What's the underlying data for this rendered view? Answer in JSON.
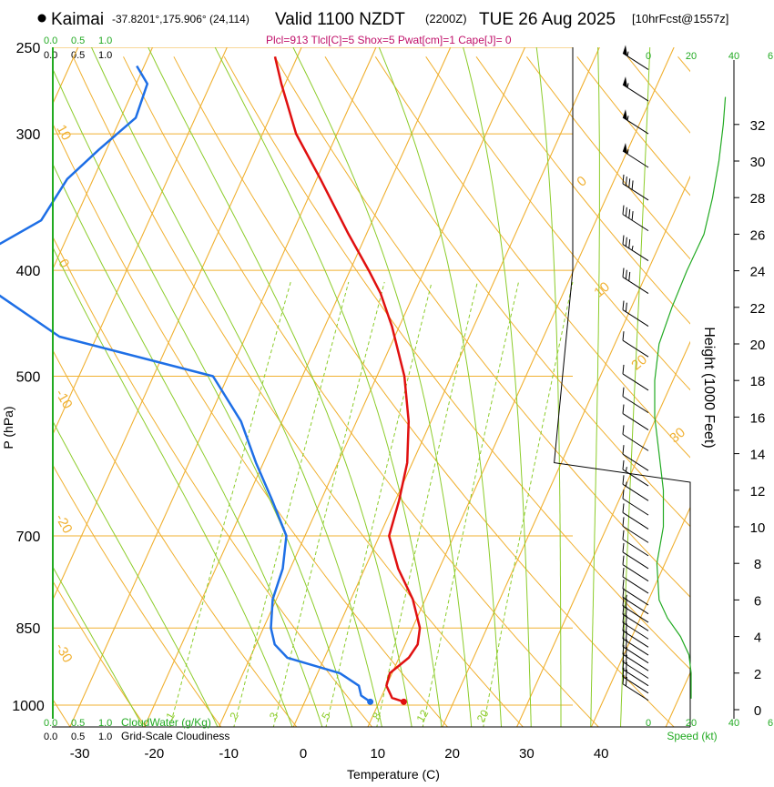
{
  "header": {
    "station": "Kaimai",
    "coords": "-37.8201°,175.906° (24,114)",
    "valid": "Valid 1100 NZDT",
    "zulu": "(2200Z)",
    "date": "TUE 26 Aug 2025",
    "run": "[10hrFcst@1557z]",
    "indices": "Plcl=913 Tlcl[C]=5 Shox=5 Pwat[cm]=1 Cape[J]= 0"
  },
  "scales": {
    "cloud_top": [
      "0.0",
      "0.5",
      "1.0"
    ],
    "cloud_top_black": [
      "0.0",
      "0.5",
      "1.0"
    ],
    "cloud_bottom_green": [
      "0.0",
      "0.5",
      "1.0"
    ],
    "cloud_bottom_black": [
      "0.0",
      "0.5",
      "1.0"
    ],
    "cloudwater_label": "CloudWater (g/Kg)",
    "cloudiness_label": "Grid-Scale Cloudiness",
    "speed_ticks": [
      "0",
      "20",
      "40",
      "6"
    ],
    "speed_label": "Speed (kt)"
  },
  "colors": {
    "temperature": "#e01010",
    "dewpoint": "#1e6fe6",
    "isotherm": "#f0b030",
    "dry_adiabat": "#f0b030",
    "moist_adiabat": "#8ccc2a",
    "mixing_ratio": "#8ccc2a",
    "wind_speed": "#22aa22"
  },
  "chart_data": {
    "type": "skew-t",
    "title": "Kaimai Valid 1100 NZDT TUE 26 Aug 2025",
    "xlabel": "Temperature (C)",
    "ylabel": "P (hPa)",
    "y2label": "Height (1000 Feet)",
    "x_ticks": [
      -30,
      -20,
      -10,
      0,
      10,
      20,
      30,
      40
    ],
    "p_ticks": [
      250,
      300,
      400,
      500,
      700,
      850,
      1000
    ],
    "height_ticks": [
      0,
      2,
      4,
      6,
      8,
      10,
      12,
      14,
      16,
      18,
      20,
      22,
      24,
      26,
      28,
      30,
      32
    ],
    "isotherm_labels": [
      "10",
      "0",
      "-10",
      "-20",
      "-30",
      "0",
      "10",
      "20",
      "30"
    ],
    "mixing_ratio_labels": [
      "1",
      "2",
      "3",
      "5",
      "8",
      "12",
      "20"
    ],
    "series": [
      {
        "name": "Temperature",
        "points": [
          {
            "p": 993,
            "t": 13.3
          },
          {
            "p": 985,
            "t": 11.5
          },
          {
            "p": 960,
            "t": 10.0
          },
          {
            "p": 935,
            "t": 9.7
          },
          {
            "p": 905,
            "t": 11.3
          },
          {
            "p": 880,
            "t": 11.7
          },
          {
            "p": 850,
            "t": 11.0
          },
          {
            "p": 800,
            "t": 8.3
          },
          {
            "p": 750,
            "t": 4.5
          },
          {
            "p": 700,
            "t": 1.3
          },
          {
            "p": 650,
            "t": 0.5
          },
          {
            "p": 600,
            "t": -0.7
          },
          {
            "p": 550,
            "t": -3.0
          },
          {
            "p": 500,
            "t": -6.3
          },
          {
            "p": 450,
            "t": -11.0
          },
          {
            "p": 420,
            "t": -14.5
          },
          {
            "p": 400,
            "t": -17.5
          },
          {
            "p": 370,
            "t": -22.5
          },
          {
            "p": 330,
            "t": -29.5
          },
          {
            "p": 300,
            "t": -35.5
          },
          {
            "p": 270,
            "t": -40.5
          },
          {
            "p": 255,
            "t": -43.0
          }
        ]
      },
      {
        "name": "Dewpoint",
        "points": [
          {
            "p": 993,
            "t": 8.8
          },
          {
            "p": 980,
            "t": 7.2
          },
          {
            "p": 960,
            "t": 6.3
          },
          {
            "p": 935,
            "t": 3.0
          },
          {
            "p": 905,
            "t": -5.0
          },
          {
            "p": 880,
            "t": -7.5
          },
          {
            "p": 850,
            "t": -9.0
          },
          {
            "p": 800,
            "t": -10.5
          },
          {
            "p": 750,
            "t": -11.0
          },
          {
            "p": 700,
            "t": -12.5
          },
          {
            "p": 650,
            "t": -16.5
          },
          {
            "p": 600,
            "t": -21.0
          },
          {
            "p": 550,
            "t": -25.5
          },
          {
            "p": 500,
            "t": -32.0
          },
          {
            "p": 460,
            "t": -55.0
          },
          {
            "p": 400,
            "t": -72.0
          },
          {
            "p": 380,
            "t": -69.0
          },
          {
            "p": 360,
            "t": -64.5
          },
          {
            "p": 330,
            "t": -63.5
          },
          {
            "p": 310,
            "t": -61.0
          },
          {
            "p": 290,
            "t": -58.0
          },
          {
            "p": 270,
            "t": -58.5
          },
          {
            "p": 260,
            "t": -61.0
          }
        ]
      },
      {
        "name": "Wind Speed",
        "points": [
          {
            "h": 0.6,
            "kt": 20
          },
          {
            "h": 1.0,
            "kt": 20
          },
          {
            "h": 2.0,
            "kt": 20
          },
          {
            "h": 3.0,
            "kt": 19
          },
          {
            "h": 4.0,
            "kt": 15
          },
          {
            "h": 5.0,
            "kt": 9
          },
          {
            "h": 6.0,
            "kt": 5
          },
          {
            "h": 8.0,
            "kt": 4
          },
          {
            "h": 10.0,
            "kt": 7
          },
          {
            "h": 12.0,
            "kt": 7
          },
          {
            "h": 14.0,
            "kt": 5
          },
          {
            "h": 16.0,
            "kt": 3
          },
          {
            "h": 18.0,
            "kt": 3
          },
          {
            "h": 19.0,
            "kt": 4
          },
          {
            "h": 20.0,
            "kt": 5
          },
          {
            "h": 22.0,
            "kt": 11
          },
          {
            "h": 24.0,
            "kt": 18
          },
          {
            "h": 26.0,
            "kt": 26
          },
          {
            "h": 28.0,
            "kt": 30
          },
          {
            "h": 30.0,
            "kt": 33
          },
          {
            "h": 32.0,
            "kt": 35
          },
          {
            "h": 33.5,
            "kt": 36
          }
        ]
      }
    ],
    "wind_barbs": [
      {
        "p": 262,
        "kt": 55
      },
      {
        "p": 280,
        "kt": 55
      },
      {
        "p": 300,
        "kt": 55
      },
      {
        "p": 322,
        "kt": 55
      },
      {
        "p": 345,
        "kt": 40
      },
      {
        "p": 368,
        "kt": 40
      },
      {
        "p": 392,
        "kt": 35
      },
      {
        "p": 420,
        "kt": 30
      },
      {
        "p": 450,
        "kt": 20
      },
      {
        "p": 480,
        "kt": 10
      },
      {
        "p": 515,
        "kt": 10
      },
      {
        "p": 540,
        "kt": 10
      },
      {
        "p": 560,
        "kt": 10
      },
      {
        "p": 585,
        "kt": 10
      },
      {
        "p": 610,
        "kt": 10
      },
      {
        "p": 630,
        "kt": 15
      },
      {
        "p": 650,
        "kt": 15
      },
      {
        "p": 670,
        "kt": 10
      },
      {
        "p": 690,
        "kt": 10
      },
      {
        "p": 710,
        "kt": 10
      },
      {
        "p": 730,
        "kt": 10
      },
      {
        "p": 750,
        "kt": 10
      },
      {
        "p": 770,
        "kt": 10
      },
      {
        "p": 790,
        "kt": 10
      },
      {
        "p": 810,
        "kt": 10
      },
      {
        "p": 825,
        "kt": 15
      },
      {
        "p": 840,
        "kt": 20
      },
      {
        "p": 855,
        "kt": 20
      },
      {
        "p": 870,
        "kt": 20
      },
      {
        "p": 885,
        "kt": 20
      },
      {
        "p": 900,
        "kt": 20
      },
      {
        "p": 915,
        "kt": 20
      },
      {
        "p": 930,
        "kt": 20
      },
      {
        "p": 945,
        "kt": 20
      },
      {
        "p": 960,
        "kt": 20
      },
      {
        "p": 975,
        "kt": 20
      },
      {
        "p": 990,
        "kt": 20
      }
    ]
  }
}
